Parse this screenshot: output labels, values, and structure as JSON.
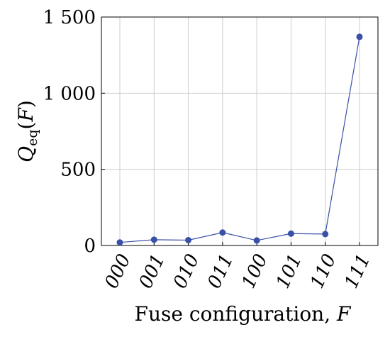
{
  "chart_data": {
    "type": "line",
    "categories": [
      "000",
      "001",
      "010",
      "011",
      "100",
      "101",
      "110",
      "111"
    ],
    "series": [
      {
        "values": [
          20,
          38,
          35,
          85,
          33,
          78,
          75,
          1370
        ]
      }
    ],
    "xlabel_text": "Fuse configuration, ",
    "xlabel_var": "F",
    "ylabel": {
      "var": "Q",
      "sub": "eq",
      "arg_open": "(",
      "arg": "F",
      "arg_close": ")"
    },
    "yticks": [
      0,
      500,
      1000,
      1500
    ],
    "ytick_labels": [
      "0",
      "500",
      "1 000",
      "1 500"
    ],
    "ylim": [
      0,
      1500
    ],
    "grid": true,
    "colors": {
      "series": "#3a50a6",
      "grid": "#cccccc",
      "axis": "#000000"
    }
  }
}
